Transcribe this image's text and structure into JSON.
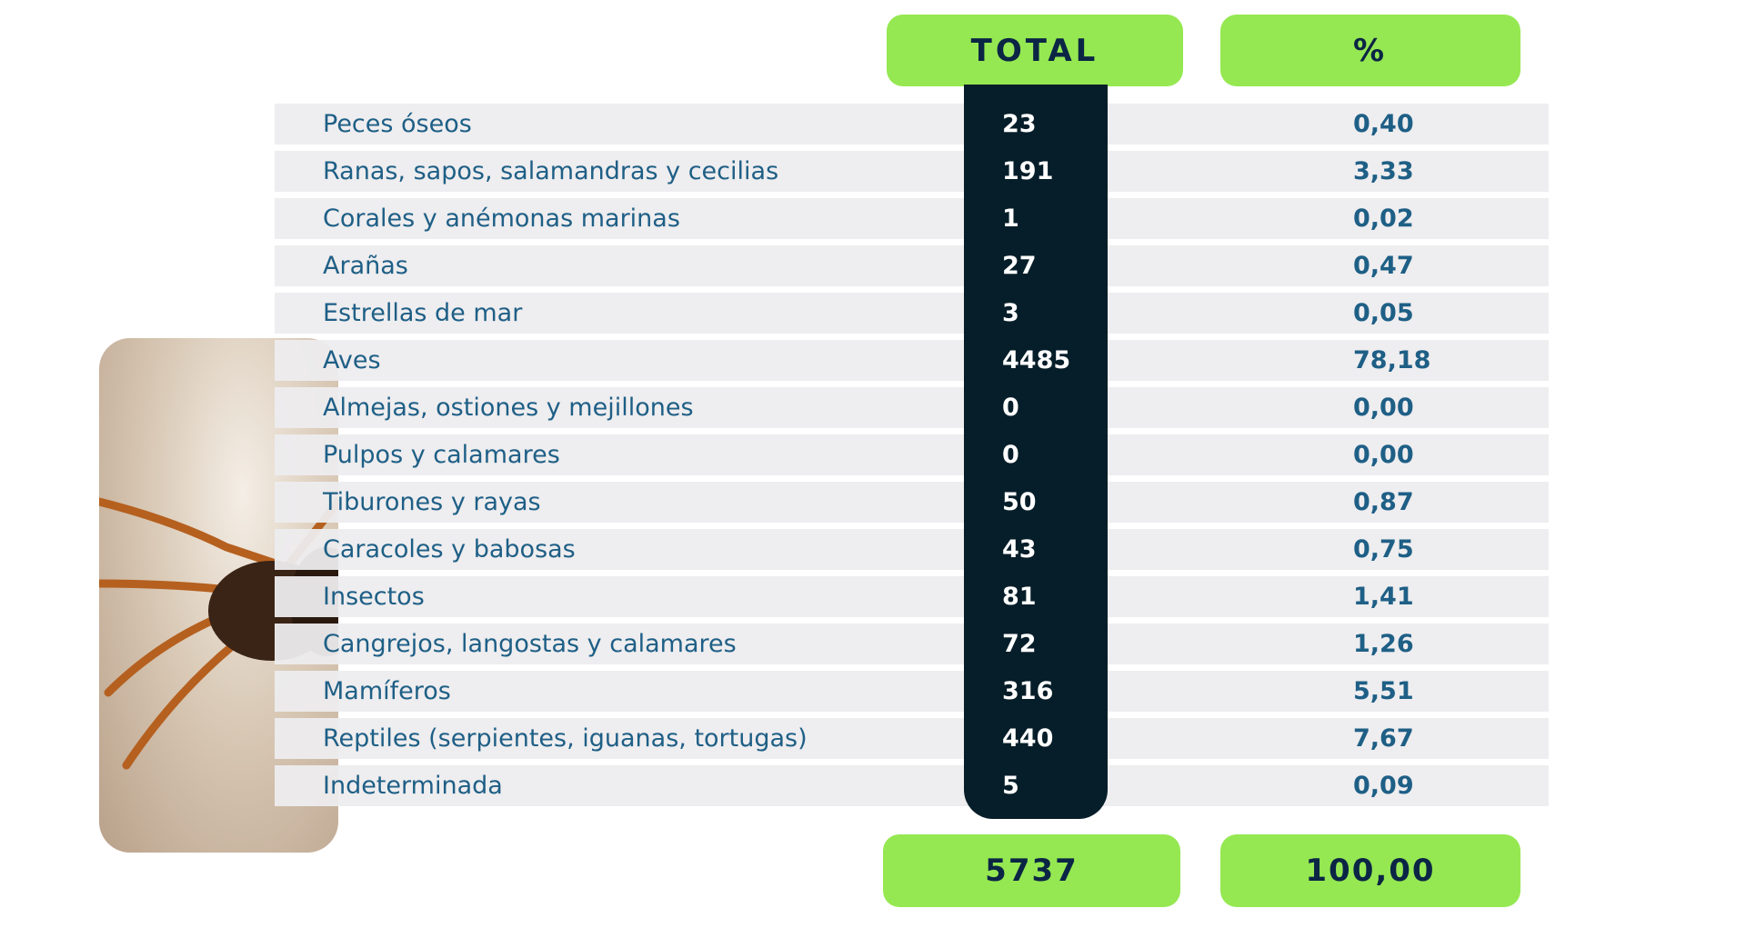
{
  "table": {
    "headers": [
      "TOTAL",
      "%"
    ],
    "rows": [
      [
        "Peces óseos",
        "23",
        "0,40"
      ],
      [
        "Ranas, sapos, salamandras y cecilias",
        "191",
        "3,33"
      ],
      [
        "Corales y anémonas marinas",
        "1",
        "0,02"
      ],
      [
        "Arañas",
        "27",
        "0,47"
      ],
      [
        "Estrellas de mar",
        "3",
        "0,05"
      ],
      [
        "Aves",
        "4485",
        "78,18"
      ],
      [
        "Almejas, ostiones y mejillones",
        "0",
        "0,00"
      ],
      [
        "Pulpos y calamares",
        "0",
        "0,00"
      ],
      [
        "Tiburones y rayas",
        "50",
        "0,87"
      ],
      [
        "Caracoles y babosas",
        "43",
        "0,75"
      ],
      [
        "Insectos",
        "81",
        "1,41"
      ],
      [
        "Cangrejos, langostas y calamares",
        "72",
        "1,26"
      ],
      [
        "Mamíferos",
        "316",
        "5,51"
      ],
      [
        "Reptiles (serpientes, iguanas, tortugas)",
        "440",
        "7,67"
      ],
      [
        "Indeterminada",
        "5",
        "0,09"
      ]
    ],
    "totals": [
      "5737",
      "100,00"
    ]
  }
}
